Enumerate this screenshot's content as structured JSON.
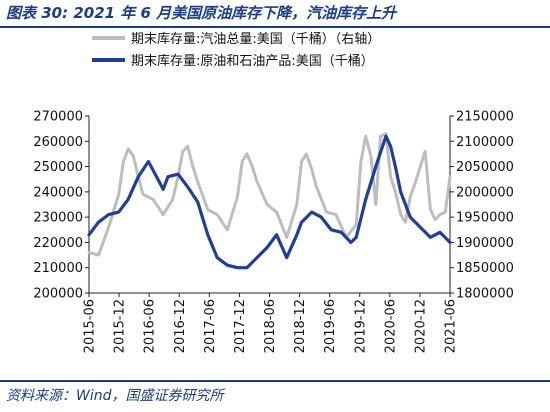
{
  "title": "图表 30:  2021 年 6 月美国原油库存下降，汽油库存上升",
  "source": "资料来源：Wind，国盛证券研究所",
  "chart_data": {
    "type": "line",
    "x_tick_labels": [
      "2015-06",
      "2015-12",
      "2016-06",
      "2016-12",
      "2017-06",
      "2017-12",
      "2018-06",
      "2018-12",
      "2019-06",
      "2019-12",
      "2020-06",
      "2020-12",
      "2021-06"
    ],
    "legend_position": "top-left",
    "grid": false,
    "left_axis": {
      "range": [
        200000,
        270000
      ],
      "ticks": [
        "200000",
        "210000",
        "220000",
        "230000",
        "240000",
        "250000",
        "260000",
        "270000"
      ]
    },
    "right_axis": {
      "range": [
        1800000,
        2150000
      ],
      "ticks": [
        "1800000",
        "1850000",
        "1900000",
        "1950000",
        "2000000",
        "2050000",
        "2100000",
        "2150000"
      ]
    },
    "series": [
      {
        "name": "期末库存量:汽油总量:美国（千桶）（右轴）",
        "axis": "right",
        "color": "#bdbdbd",
        "x": [
          2015.42,
          2015.58,
          2015.75,
          2015.92,
          2016.0,
          2016.08,
          2016.17,
          2016.25,
          2016.33,
          2016.5,
          2016.67,
          2016.83,
          2016.92,
          2017.0,
          2017.08,
          2017.17,
          2017.25,
          2017.42,
          2017.58,
          2017.75,
          2017.92,
          2018.0,
          2018.08,
          2018.17,
          2018.25,
          2018.42,
          2018.58,
          2018.75,
          2018.92,
          2019.0,
          2019.08,
          2019.17,
          2019.25,
          2019.42,
          2019.58,
          2019.75,
          2019.92,
          2020.0,
          2020.08,
          2020.17,
          2020.25,
          2020.33,
          2020.42,
          2020.5,
          2020.58,
          2020.67,
          2020.75,
          2020.83,
          2020.92,
          2021.0,
          2021.08,
          2021.17,
          2021.25,
          2021.33,
          2021.42,
          2021.5
        ],
        "y": [
          1880000,
          1875000,
          1930000,
          1995000,
          2060000,
          2085000,
          2070000,
          2030000,
          1995000,
          1985000,
          1955000,
          1985000,
          2030000,
          2080000,
          2090000,
          2050000,
          2020000,
          1965000,
          1955000,
          1925000,
          1990000,
          2060000,
          2075000,
          2050000,
          2020000,
          1975000,
          1960000,
          1910000,
          1975000,
          2060000,
          2075000,
          2045000,
          2010000,
          1960000,
          1955000,
          1910000,
          1935000,
          2060000,
          2110000,
          2070000,
          1975000,
          2110000,
          2115000,
          2030000,
          2000000,
          1955000,
          1940000,
          1990000,
          2020000,
          2050000,
          2080000,
          1965000,
          1945000,
          1955000,
          1960000,
          2030000
        ]
      },
      {
        "name": "期末库存量:原油和石油产品:美国（千桶）",
        "axis": "left",
        "color": "#1f3d9b",
        "x": [
          2015.42,
          2015.58,
          2015.75,
          2015.92,
          2016.08,
          2016.25,
          2016.42,
          2016.58,
          2016.67,
          2016.75,
          2016.92,
          2017.08,
          2017.25,
          2017.42,
          2017.58,
          2017.75,
          2017.92,
          2018.08,
          2018.25,
          2018.42,
          2018.58,
          2018.75,
          2018.92,
          2019.0,
          2019.17,
          2019.33,
          2019.5,
          2019.67,
          2019.83,
          2019.92,
          2020.08,
          2020.25,
          2020.42,
          2020.5,
          2020.58,
          2020.67,
          2020.83,
          2021.0,
          2021.17,
          2021.33,
          2021.5
        ],
        "y": [
          223000,
          228000,
          231000,
          232000,
          237000,
          246000,
          252000,
          245000,
          241000,
          246000,
          247000,
          242000,
          236000,
          223000,
          214000,
          211000,
          210000,
          210000,
          214000,
          218000,
          223000,
          214000,
          223000,
          228000,
          232000,
          230000,
          225000,
          224000,
          220000,
          222000,
          237000,
          250000,
          262000,
          258000,
          250000,
          240000,
          230000,
          226000,
          222000,
          224000,
          220000
        ]
      }
    ]
  }
}
